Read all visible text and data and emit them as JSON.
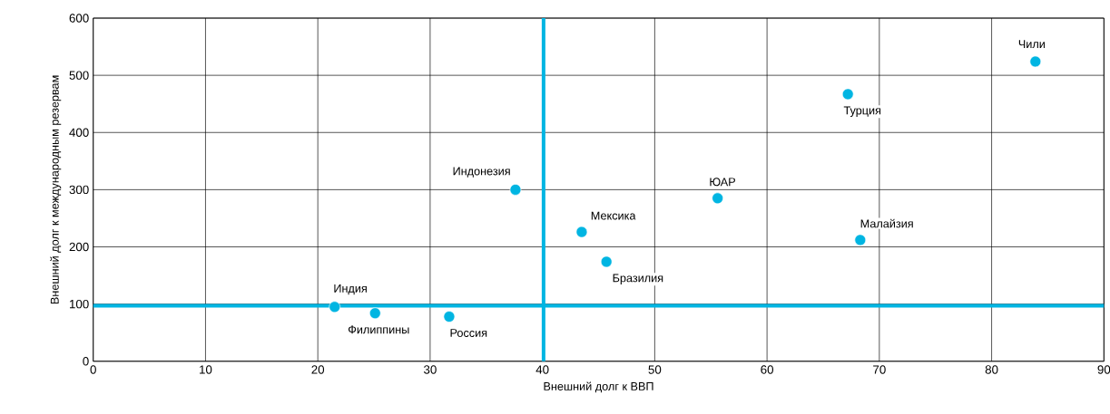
{
  "chart_data": {
    "type": "scatter",
    "xlabel": "Внешний долг к ВВП",
    "ylabel": "Внешний долг к международным резервам",
    "x": [
      83.9,
      67.2,
      37.6,
      55.6,
      43.5,
      68.3,
      45.7,
      21.5,
      25.1,
      31.7
    ],
    "values": [
      524,
      467,
      300,
      285,
      226,
      212,
      174,
      95,
      84,
      78
    ],
    "color": "#00b5e2",
    "marker": "circle",
    "grid": true,
    "xlim": [
      0,
      90
    ],
    "ylim": [
      0,
      600
    ],
    "xticks": [
      0,
      10,
      20,
      30,
      40,
      50,
      60,
      70,
      80,
      90
    ],
    "yticks": [
      0,
      100,
      200,
      300,
      400,
      500,
      600
    ],
    "ref_lines": [
      {
        "axis": "x",
        "value": 40.1,
        "color": "#00b5e2"
      },
      {
        "axis": "y",
        "value": 97,
        "color": "#00b5e2"
      }
    ],
    "annotations": [
      {
        "text": "Чили",
        "x": 83.9,
        "y": 524
      },
      {
        "text": "Турция",
        "x": 67.2,
        "y": 467
      },
      {
        "text": "Индонезия",
        "x": 37.6,
        "y": 300
      },
      {
        "text": "ЮАР",
        "x": 55.6,
        "y": 285
      },
      {
        "text": "Мексика",
        "x": 43.5,
        "y": 226
      },
      {
        "text": "Малайзия",
        "x": 68.3,
        "y": 212
      },
      {
        "text": "Бразилия",
        "x": 45.7,
        "y": 174
      },
      {
        "text": "Индия",
        "x": 21.5,
        "y": 95
      },
      {
        "text": "Филиппины",
        "x": 25.1,
        "y": 84
      },
      {
        "text": "Россия",
        "x": 31.7,
        "y": 78
      }
    ]
  }
}
